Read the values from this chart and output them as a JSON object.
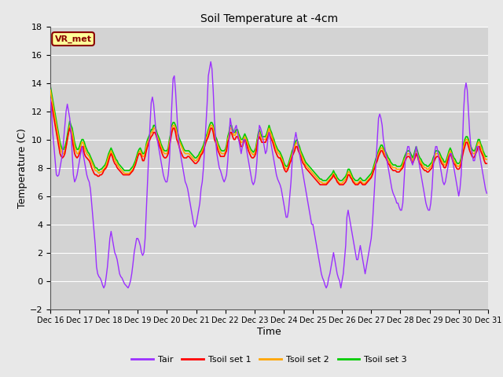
{
  "title": "Soil Temperature at -4cm",
  "xlabel": "Time",
  "ylabel": "Temperature (C)",
  "ylim": [
    -2,
    18
  ],
  "xlim": [
    0,
    360
  ],
  "fig_bg_color": "#e8e8e8",
  "plot_bg_color": "#d3d3d3",
  "grid_color": "#ffffff",
  "tair_color": "#9b30ff",
  "tsoil1_color": "#ff0000",
  "tsoil2_color": "#ffa500",
  "tsoil3_color": "#00cc00",
  "legend_label_tair": "Tair",
  "legend_label_tsoil1": "Tsoil set 1",
  "legend_label_tsoil2": "Tsoil set 2",
  "legend_label_tsoil3": "Tsoil set 3",
  "vr_met_label": "VR_met",
  "tick_labels": [
    "Dec 16",
    "Dec 17",
    "Dec 18",
    "Dec 19",
    "Dec 20",
    "Dec 21",
    "Dec 22",
    "Dec 23",
    "Dec 24",
    "Dec 25",
    "Dec 26",
    "Dec 27",
    "Dec 28",
    "Dec 29",
    "Dec 30",
    "Dec 31"
  ],
  "tick_positions": [
    0,
    24,
    48,
    72,
    96,
    120,
    144,
    168,
    192,
    216,
    240,
    264,
    288,
    312,
    336,
    360
  ],
  "yticks": [
    -2,
    0,
    2,
    4,
    6,
    8,
    10,
    12,
    14,
    16,
    18
  ],
  "tair": [
    12.9,
    12.0,
    10.5,
    9.5,
    8.5,
    7.5,
    7.4,
    7.5,
    8.0,
    8.5,
    9.0,
    10.0,
    11.0,
    12.0,
    12.5,
    12.0,
    11.5,
    10.5,
    9.0,
    7.5,
    7.0,
    7.2,
    7.5,
    8.0,
    8.5,
    9.0,
    9.5,
    9.0,
    8.5,
    8.0,
    7.5,
    7.2,
    7.0,
    6.5,
    5.5,
    4.5,
    3.5,
    2.5,
    1.0,
    0.5,
    0.3,
    0.2,
    0.0,
    -0.3,
    -0.5,
    -0.3,
    0.3,
    1.0,
    2.0,
    3.0,
    3.5,
    3.0,
    2.5,
    2.0,
    1.8,
    1.5,
    1.0,
    0.5,
    0.3,
    0.2,
    0.0,
    -0.2,
    -0.3,
    -0.4,
    -0.5,
    -0.3,
    0.0,
    0.5,
    1.2,
    2.0,
    2.5,
    3.0,
    3.0,
    2.8,
    2.5,
    2.0,
    1.8,
    2.0,
    3.0,
    5.0,
    7.0,
    9.0,
    11.0,
    12.6,
    13.0,
    12.5,
    11.5,
    10.5,
    10.0,
    9.5,
    9.0,
    8.5,
    8.0,
    7.5,
    7.2,
    7.0,
    7.0,
    7.5,
    8.5,
    10.5,
    12.5,
    14.3,
    14.5,
    13.5,
    12.0,
    10.5,
    9.5,
    9.0,
    8.5,
    8.0,
    7.5,
    7.0,
    6.8,
    6.5,
    6.0,
    5.5,
    5.0,
    4.5,
    4.0,
    3.8,
    4.0,
    4.5,
    5.0,
    5.5,
    6.5,
    7.0,
    8.0,
    9.5,
    11.0,
    12.5,
    14.5,
    15.0,
    15.5,
    15.0,
    13.5,
    11.5,
    10.0,
    9.0,
    8.5,
    8.0,
    7.8,
    7.5,
    7.2,
    7.0,
    7.2,
    7.5,
    8.5,
    10.0,
    11.5,
    11.0,
    10.5,
    10.5,
    10.8,
    11.0,
    10.5,
    10.0,
    9.5,
    9.0,
    9.5,
    10.0,
    10.0,
    9.5,
    9.0,
    8.5,
    8.0,
    7.5,
    7.0,
    6.8,
    7.0,
    7.5,
    8.5,
    10.0,
    11.0,
    10.8,
    10.5,
    10.0,
    9.5,
    9.0,
    9.2,
    10.0,
    10.5,
    10.0,
    9.5,
    9.0,
    8.5,
    8.0,
    7.5,
    7.2,
    7.0,
    6.8,
    6.5,
    6.0,
    5.5,
    5.0,
    4.5,
    4.5,
    5.0,
    6.0,
    7.0,
    8.5,
    9.5,
    10.0,
    10.5,
    10.0,
    9.5,
    9.0,
    8.5,
    8.0,
    7.5,
    7.0,
    6.5,
    6.0,
    5.5,
    5.0,
    4.5,
    4.0,
    4.0,
    3.5,
    3.0,
    2.5,
    2.0,
    1.5,
    1.0,
    0.5,
    0.2,
    0.0,
    -0.3,
    -0.5,
    -0.3,
    0.2,
    0.5,
    1.0,
    1.5,
    2.0,
    1.5,
    1.0,
    0.5,
    0.2,
    0.0,
    -0.5,
    0.0,
    0.5,
    1.5,
    2.5,
    4.5,
    5.0,
    4.5,
    4.0,
    3.5,
    3.0,
    2.5,
    2.0,
    1.5,
    1.5,
    2.0,
    2.5,
    2.0,
    1.5,
    1.0,
    0.5,
    1.0,
    1.5,
    2.0,
    2.5,
    3.0,
    4.0,
    5.5,
    7.0,
    8.5,
    10.0,
    11.5,
    11.8,
    11.5,
    11.0,
    10.0,
    9.5,
    9.0,
    8.5,
    8.0,
    7.5,
    7.0,
    6.5,
    6.2,
    6.0,
    5.8,
    5.5,
    5.5,
    5.2,
    5.0,
    5.0,
    5.5,
    7.0,
    8.5,
    9.0,
    9.5,
    9.5,
    9.0,
    8.5,
    8.2,
    8.5,
    9.0,
    9.5,
    9.0,
    8.5,
    8.0,
    7.5,
    7.0,
    6.5,
    6.0,
    5.5,
    5.2,
    5.0,
    5.0,
    5.5,
    6.5,
    8.0,
    9.0,
    9.5,
    9.5,
    9.0,
    8.5,
    8.0,
    7.5,
    7.0,
    6.8,
    7.0,
    7.5,
    8.0,
    8.5,
    9.0,
    9.0,
    8.5,
    8.0,
    7.5,
    7.0,
    6.5,
    6.0,
    6.5,
    7.5,
    9.5,
    12.0,
    13.5,
    14.0,
    13.5,
    12.0,
    10.5,
    9.5,
    9.0,
    8.5,
    8.5,
    9.0,
    9.5,
    9.5,
    9.0,
    8.5,
    8.0,
    7.5,
    7.0,
    6.5,
    6.2
  ],
  "tsoil1": [
    12.8,
    12.5,
    12.0,
    11.5,
    11.0,
    10.5,
    10.0,
    9.5,
    9.0,
    8.8,
    8.7,
    8.8,
    9.0,
    9.5,
    10.0,
    10.5,
    10.8,
    10.5,
    10.0,
    9.5,
    9.0,
    8.8,
    8.7,
    8.8,
    9.0,
    9.2,
    9.5,
    9.5,
    9.0,
    8.8,
    8.7,
    8.6,
    8.5,
    8.3,
    8.0,
    7.8,
    7.6,
    7.5,
    7.5,
    7.4,
    7.4,
    7.5,
    7.5,
    7.6,
    7.8,
    7.9,
    8.0,
    8.2,
    8.5,
    8.8,
    9.0,
    8.8,
    8.5,
    8.3,
    8.2,
    8.0,
    7.9,
    7.8,
    7.7,
    7.6,
    7.5,
    7.5,
    7.5,
    7.5,
    7.5,
    7.5,
    7.6,
    7.7,
    7.8,
    8.0,
    8.2,
    8.5,
    8.8,
    9.0,
    9.0,
    8.8,
    8.5,
    8.5,
    8.8,
    9.2,
    9.5,
    9.8,
    10.0,
    10.2,
    10.3,
    10.5,
    10.5,
    10.3,
    10.0,
    9.8,
    9.5,
    9.3,
    9.0,
    8.8,
    8.7,
    8.7,
    8.8,
    9.0,
    9.5,
    10.0,
    10.5,
    10.8,
    10.8,
    10.5,
    10.0,
    9.8,
    9.5,
    9.2,
    9.0,
    8.8,
    8.7,
    8.7,
    8.7,
    8.8,
    8.8,
    8.7,
    8.6,
    8.5,
    8.4,
    8.3,
    8.3,
    8.4,
    8.5,
    8.7,
    8.9,
    9.0,
    9.2,
    9.5,
    9.8,
    10.0,
    10.2,
    10.5,
    10.8,
    10.8,
    10.5,
    10.0,
    9.8,
    9.5,
    9.2,
    9.0,
    8.8,
    8.8,
    8.8,
    8.8,
    9.0,
    9.2,
    9.8,
    10.0,
    10.5,
    10.5,
    10.2,
    10.0,
    10.0,
    10.2,
    10.2,
    10.0,
    9.8,
    9.5,
    9.5,
    9.8,
    10.0,
    9.8,
    9.5,
    9.2,
    9.0,
    8.8,
    8.7,
    8.7,
    8.8,
    9.0,
    9.5,
    10.0,
    10.2,
    10.0,
    9.8,
    9.8,
    9.8,
    9.8,
    10.0,
    10.2,
    10.5,
    10.2,
    10.0,
    9.8,
    9.5,
    9.2,
    9.0,
    8.8,
    8.7,
    8.7,
    8.5,
    8.3,
    8.0,
    7.8,
    7.7,
    7.8,
    8.0,
    8.3,
    8.5,
    8.8,
    9.0,
    9.2,
    9.5,
    9.5,
    9.2,
    9.0,
    8.8,
    8.5,
    8.3,
    8.2,
    8.0,
    7.9,
    7.8,
    7.7,
    7.6,
    7.5,
    7.4,
    7.3,
    7.2,
    7.1,
    7.0,
    6.9,
    6.8,
    6.8,
    6.8,
    6.8,
    6.8,
    6.8,
    6.9,
    7.0,
    7.1,
    7.2,
    7.3,
    7.5,
    7.3,
    7.2,
    7.0,
    6.9,
    6.8,
    6.8,
    6.8,
    6.8,
    6.9,
    7.0,
    7.2,
    7.5,
    7.5,
    7.3,
    7.2,
    7.0,
    6.9,
    6.8,
    6.8,
    6.8,
    6.9,
    7.0,
    6.9,
    6.8,
    6.8,
    6.8,
    6.9,
    7.0,
    7.1,
    7.2,
    7.3,
    7.5,
    7.8,
    8.0,
    8.3,
    8.5,
    8.8,
    9.0,
    9.2,
    9.2,
    9.0,
    8.8,
    8.7,
    8.5,
    8.3,
    8.2,
    8.0,
    7.9,
    7.8,
    7.8,
    7.8,
    7.7,
    7.7,
    7.7,
    7.8,
    7.9,
    8.0,
    8.3,
    8.5,
    8.7,
    8.8,
    8.8,
    8.7,
    8.5,
    8.3,
    8.5,
    8.7,
    9.0,
    8.8,
    8.5,
    8.3,
    8.2,
    8.0,
    7.9,
    7.8,
    7.8,
    7.7,
    7.7,
    7.8,
    7.9,
    8.0,
    8.3,
    8.5,
    8.7,
    8.8,
    8.8,
    8.7,
    8.5,
    8.3,
    8.2,
    8.0,
    8.0,
    8.2,
    8.5,
    8.8,
    9.0,
    8.8,
    8.5,
    8.3,
    8.2,
    8.0,
    7.9,
    7.9,
    8.0,
    8.3,
    8.8,
    9.2,
    9.5,
    9.8,
    9.8,
    9.5,
    9.2,
    9.0,
    8.8,
    8.7,
    8.8,
    9.0,
    9.2,
    9.5,
    9.5,
    9.2,
    9.0,
    8.8,
    8.5,
    8.3,
    8.3
  ],
  "tsoil2": [
    13.5,
    13.0,
    12.5,
    12.0,
    11.5,
    11.0,
    10.5,
    10.0,
    9.5,
    9.2,
    9.0,
    9.0,
    9.2,
    9.5,
    10.0,
    10.5,
    11.0,
    10.8,
    10.5,
    10.0,
    9.5,
    9.2,
    9.0,
    9.0,
    9.2,
    9.5,
    9.8,
    9.8,
    9.5,
    9.2,
    9.0,
    8.9,
    8.8,
    8.6,
    8.4,
    8.2,
    8.0,
    7.8,
    7.8,
    7.7,
    7.6,
    7.7,
    7.7,
    7.8,
    7.9,
    8.0,
    8.2,
    8.5,
    8.8,
    9.0,
    9.2,
    9.0,
    8.8,
    8.6,
    8.4,
    8.3,
    8.1,
    8.0,
    7.9,
    7.8,
    7.7,
    7.6,
    7.6,
    7.6,
    7.6,
    7.6,
    7.7,
    7.8,
    7.9,
    8.1,
    8.3,
    8.6,
    8.9,
    9.1,
    9.2,
    9.0,
    8.8,
    8.8,
    9.0,
    9.5,
    9.8,
    10.0,
    10.2,
    10.5,
    10.5,
    10.8,
    10.8,
    10.5,
    10.2,
    10.0,
    9.8,
    9.5,
    9.3,
    9.1,
    9.0,
    9.0,
    9.0,
    9.2,
    9.8,
    10.2,
    10.8,
    11.0,
    11.0,
    10.8,
    10.5,
    10.2,
    9.9,
    9.7,
    9.5,
    9.3,
    9.1,
    9.0,
    9.0,
    9.0,
    9.0,
    8.9,
    8.8,
    8.7,
    8.6,
    8.5,
    8.5,
    8.6,
    8.7,
    8.9,
    9.0,
    9.2,
    9.4,
    9.7,
    10.0,
    10.2,
    10.5,
    10.8,
    11.0,
    11.0,
    10.8,
    10.3,
    10.0,
    9.8,
    9.5,
    9.3,
    9.1,
    9.0,
    9.0,
    9.0,
    9.1,
    9.4,
    10.0,
    10.3,
    10.8,
    10.8,
    10.5,
    10.3,
    10.3,
    10.5,
    10.5,
    10.2,
    10.0,
    9.8,
    9.8,
    10.0,
    10.2,
    10.0,
    9.8,
    9.5,
    9.3,
    9.1,
    9.0,
    8.9,
    9.0,
    9.2,
    9.7,
    10.2,
    10.5,
    10.2,
    10.0,
    10.0,
    10.0,
    10.0,
    10.2,
    10.5,
    10.8,
    10.5,
    10.3,
    10.0,
    9.8,
    9.5,
    9.3,
    9.1,
    9.0,
    8.9,
    8.7,
    8.5,
    8.2,
    8.0,
    7.9,
    7.9,
    8.1,
    8.4,
    8.7,
    9.0,
    9.2,
    9.5,
    9.7,
    9.8,
    9.5,
    9.3,
    9.0,
    8.8,
    8.6,
    8.4,
    8.2,
    8.1,
    8.0,
    7.9,
    7.8,
    7.7,
    7.6,
    7.5,
    7.4,
    7.3,
    7.2,
    7.1,
    7.0,
    7.0,
    6.9,
    6.9,
    6.9,
    6.9,
    7.0,
    7.1,
    7.2,
    7.3,
    7.4,
    7.6,
    7.4,
    7.3,
    7.1,
    7.0,
    6.9,
    6.9,
    6.9,
    7.0,
    7.1,
    7.2,
    7.4,
    7.7,
    7.7,
    7.5,
    7.3,
    7.1,
    7.0,
    6.9,
    6.9,
    6.9,
    7.0,
    7.1,
    7.0,
    6.9,
    6.9,
    6.9,
    7.0,
    7.1,
    7.2,
    7.3,
    7.4,
    7.6,
    7.9,
    8.2,
    8.5,
    8.7,
    9.0,
    9.2,
    9.4,
    9.4,
    9.2,
    9.0,
    8.9,
    8.7,
    8.5,
    8.4,
    8.2,
    8.1,
    8.0,
    8.0,
    8.0,
    7.9,
    7.9,
    7.9,
    7.9,
    8.0,
    8.2,
    8.5,
    8.7,
    8.9,
    9.0,
    9.0,
    8.9,
    8.7,
    8.5,
    8.7,
    9.0,
    9.3,
    9.0,
    8.7,
    8.5,
    8.4,
    8.2,
    8.1,
    8.0,
    8.0,
    7.9,
    7.9,
    8.0,
    8.1,
    8.2,
    8.5,
    8.7,
    9.0,
    9.0,
    9.0,
    8.9,
    8.7,
    8.5,
    8.4,
    8.2,
    8.2,
    8.4,
    8.7,
    9.0,
    9.2,
    9.0,
    8.7,
    8.5,
    8.4,
    8.2,
    8.1,
    8.1,
    8.2,
    8.5,
    9.0,
    9.5,
    9.8,
    10.0,
    10.0,
    9.8,
    9.5,
    9.3,
    9.1,
    9.0,
    9.0,
    9.2,
    9.5,
    9.8,
    9.8,
    9.5,
    9.3,
    9.0,
    8.8,
    8.6,
    8.6
  ],
  "tsoil3": [
    13.8,
    13.3,
    12.8,
    12.3,
    11.8,
    11.3,
    10.8,
    10.3,
    9.8,
    9.5,
    9.3,
    9.3,
    9.5,
    9.8,
    10.3,
    10.8,
    11.3,
    11.0,
    10.8,
    10.3,
    9.8,
    9.5,
    9.3,
    9.3,
    9.5,
    9.8,
    10.0,
    10.0,
    9.8,
    9.5,
    9.3,
    9.1,
    9.0,
    8.8,
    8.6,
    8.4,
    8.2,
    8.0,
    8.0,
    7.9,
    7.8,
    7.9,
    7.9,
    8.0,
    8.1,
    8.2,
    8.4,
    8.7,
    9.0,
    9.2,
    9.4,
    9.2,
    9.0,
    8.8,
    8.6,
    8.5,
    8.3,
    8.2,
    8.1,
    8.0,
    7.9,
    7.8,
    7.8,
    7.8,
    7.8,
    7.8,
    7.9,
    8.0,
    8.1,
    8.3,
    8.5,
    8.8,
    9.1,
    9.3,
    9.4,
    9.2,
    9.0,
    9.0,
    9.2,
    9.7,
    10.0,
    10.2,
    10.4,
    10.7,
    10.7,
    11.0,
    11.0,
    10.7,
    10.4,
    10.2,
    10.0,
    9.7,
    9.5,
    9.3,
    9.2,
    9.2,
    9.2,
    9.4,
    10.0,
    10.4,
    11.0,
    11.2,
    11.2,
    11.0,
    10.7,
    10.4,
    10.1,
    9.9,
    9.7,
    9.5,
    9.3,
    9.2,
    9.2,
    9.2,
    9.2,
    9.1,
    9.0,
    8.9,
    8.8,
    8.7,
    8.7,
    8.8,
    8.9,
    9.1,
    9.2,
    9.4,
    9.6,
    9.9,
    10.2,
    10.4,
    10.7,
    11.0,
    11.2,
    11.2,
    11.0,
    10.5,
    10.2,
    10.0,
    9.7,
    9.5,
    9.3,
    9.2,
    9.2,
    9.2,
    9.3,
    9.6,
    10.2,
    10.5,
    11.0,
    11.0,
    10.7,
    10.5,
    10.5,
    10.7,
    10.7,
    10.4,
    10.2,
    10.0,
    10.0,
    10.2,
    10.4,
    10.2,
    10.0,
    9.7,
    9.5,
    9.3,
    9.2,
    9.1,
    9.2,
    9.4,
    9.9,
    10.4,
    10.7,
    10.4,
    10.2,
    10.2,
    10.2,
    10.2,
    10.4,
    10.7,
    11.0,
    10.7,
    10.5,
    10.2,
    10.0,
    9.7,
    9.5,
    9.3,
    9.2,
    9.1,
    8.9,
    8.7,
    8.4,
    8.2,
    8.1,
    8.1,
    8.3,
    8.6,
    8.9,
    9.2,
    9.4,
    9.7,
    9.9,
    10.0,
    9.7,
    9.5,
    9.2,
    9.0,
    8.8,
    8.6,
    8.4,
    8.3,
    8.2,
    8.1,
    8.0,
    7.9,
    7.8,
    7.7,
    7.6,
    7.5,
    7.4,
    7.3,
    7.2,
    7.2,
    7.1,
    7.1,
    7.1,
    7.1,
    7.2,
    7.3,
    7.4,
    7.5,
    7.6,
    7.8,
    7.6,
    7.5,
    7.3,
    7.2,
    7.1,
    7.1,
    7.1,
    7.2,
    7.3,
    7.4,
    7.6,
    7.9,
    7.9,
    7.7,
    7.5,
    7.3,
    7.2,
    7.1,
    7.1,
    7.1,
    7.2,
    7.3,
    7.2,
    7.1,
    7.1,
    7.1,
    7.2,
    7.3,
    7.4,
    7.5,
    7.6,
    7.8,
    8.1,
    8.4,
    8.7,
    8.9,
    9.2,
    9.4,
    9.6,
    9.6,
    9.4,
    9.2,
    9.1,
    8.9,
    8.7,
    8.6,
    8.4,
    8.3,
    8.2,
    8.2,
    8.2,
    8.1,
    8.1,
    8.1,
    8.1,
    8.2,
    8.4,
    8.7,
    8.9,
    9.1,
    9.2,
    9.2,
    9.1,
    8.9,
    8.7,
    8.9,
    9.2,
    9.5,
    9.2,
    8.9,
    8.7,
    8.6,
    8.4,
    8.3,
    8.2,
    8.2,
    8.1,
    8.1,
    8.2,
    8.3,
    8.4,
    8.7,
    8.9,
    9.2,
    9.2,
    9.2,
    9.1,
    8.9,
    8.7,
    8.6,
    8.4,
    8.4,
    8.6,
    8.9,
    9.2,
    9.4,
    9.2,
    8.9,
    8.7,
    8.6,
    8.4,
    8.3,
    8.3,
    8.4,
    8.7,
    9.2,
    9.7,
    10.0,
    10.2,
    10.2,
    10.0,
    9.7,
    9.5,
    9.3,
    9.2,
    9.2,
    9.4,
    9.7,
    10.0,
    10.0,
    9.7,
    9.5,
    9.2,
    9.0,
    8.8,
    8.8
  ]
}
